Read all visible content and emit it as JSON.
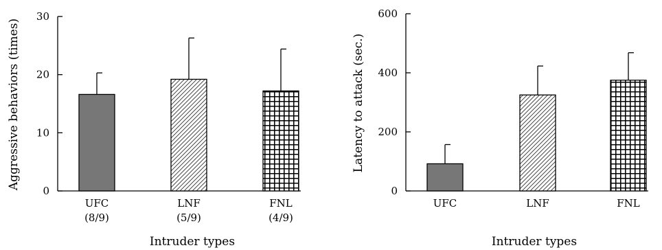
{
  "chart_data": [
    {
      "type": "bar",
      "categories": [
        "UFC",
        "LNF",
        "FNL"
      ],
      "category_sublabels": [
        "(8/9)",
        "(5/9)",
        "(4/9)"
      ],
      "values": [
        16.6,
        19.2,
        17.2
      ],
      "errors": [
        3.7,
        7.1,
        7.2
      ],
      "patterns": [
        "solid-gray",
        "diagonal-hatch",
        "grid-check"
      ],
      "xlabel": "Intruder types",
      "ylabel": "Aggressive behaviors (times)",
      "ylim": [
        0,
        30
      ],
      "yticks": [
        0,
        10,
        20,
        30
      ],
      "grid": false,
      "legend": "none"
    },
    {
      "type": "bar",
      "categories": [
        "UFC",
        "LNF",
        "FNL"
      ],
      "values": [
        92,
        325,
        375
      ],
      "errors": [
        65,
        98,
        93
      ],
      "patterns": [
        "solid-gray",
        "diagonal-hatch",
        "grid-check"
      ],
      "xlabel": "Intruder types",
      "ylabel": "Latency to attack (sec.)",
      "ylim": [
        0,
        600
      ],
      "yticks": [
        0,
        200,
        400,
        600
      ],
      "grid": false,
      "legend": "none"
    }
  ],
  "colors": {
    "bar_gray": "#777777",
    "ink": "#000000",
    "background": "#ffffff"
  }
}
